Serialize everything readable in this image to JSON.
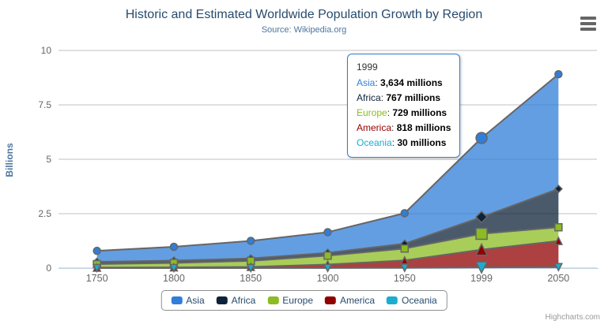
{
  "chart": {
    "title": "Historic and Estimated Worldwide Population Growth by Region",
    "subtitle": "Source: Wikipedia.org",
    "credits": "Highcharts.com"
  },
  "chart_data": {
    "type": "area",
    "stacking": "normal",
    "title": "Historic and Estimated Worldwide Population Growth by Region",
    "subtitle": "Source: Wikipedia.org",
    "categories": [
      "1750",
      "1800",
      "1850",
      "1900",
      "1950",
      "1999",
      "2050"
    ],
    "series": [
      {
        "name": "Asia",
        "color": "#2f7ed8",
        "marker": "circle",
        "values_millions": [
          502,
          635,
          809,
          947,
          1402,
          3634,
          5268
        ]
      },
      {
        "name": "Africa",
        "color": "#0d233a",
        "marker": "diamond",
        "values_millions": [
          106,
          107,
          111,
          133,
          221,
          767,
          1766
        ]
      },
      {
        "name": "Europe",
        "color": "#8bbc21",
        "marker": "square",
        "values_millions": [
          163,
          203,
          276,
          408,
          547,
          729,
          628
        ]
      },
      {
        "name": "America",
        "color": "#910000",
        "marker": "triangle-up",
        "values_millions": [
          18,
          31,
          54,
          156,
          339,
          818,
          1201
        ]
      },
      {
        "name": "Oceania",
        "color": "#1aadce",
        "marker": "triangle-down",
        "values_millions": [
          2,
          2,
          2,
          6,
          13,
          30,
          46
        ]
      }
    ],
    "xlabel": "",
    "ylabel": "Billions",
    "ylim": [
      0,
      10
    ],
    "yticks": [
      "0",
      "2.5",
      "5",
      "7.5",
      "10"
    ],
    "grid": true,
    "legend_position": "bottom",
    "line_color": "#666666",
    "fill_opacity": 0.75,
    "hovered_category_index": 5
  },
  "tooltip": {
    "header": "1999",
    "unit": "millions",
    "rows": [
      {
        "name": "Asia",
        "value": "3,634 millions"
      },
      {
        "name": "Africa",
        "value": "767 millions"
      },
      {
        "name": "Europe",
        "value": "729 millions"
      },
      {
        "name": "America",
        "value": "818 millions"
      },
      {
        "name": "Oceania",
        "value": "30 millions"
      }
    ]
  },
  "legend": {
    "items": [
      "Asia",
      "Africa",
      "Europe",
      "America",
      "Oceania"
    ]
  },
  "colors": {
    "title": "#274b6d",
    "subtitle": "#4d759e",
    "axis_label": "#666666",
    "axis_title": "#4d759e",
    "grid_line": "#c0c0c0",
    "axis_line": "#c0d0e0",
    "legend_text": "#274b6d",
    "legend_border": "#909090",
    "tooltip_border": "#2f7ed8",
    "credits_text": "#999999"
  }
}
